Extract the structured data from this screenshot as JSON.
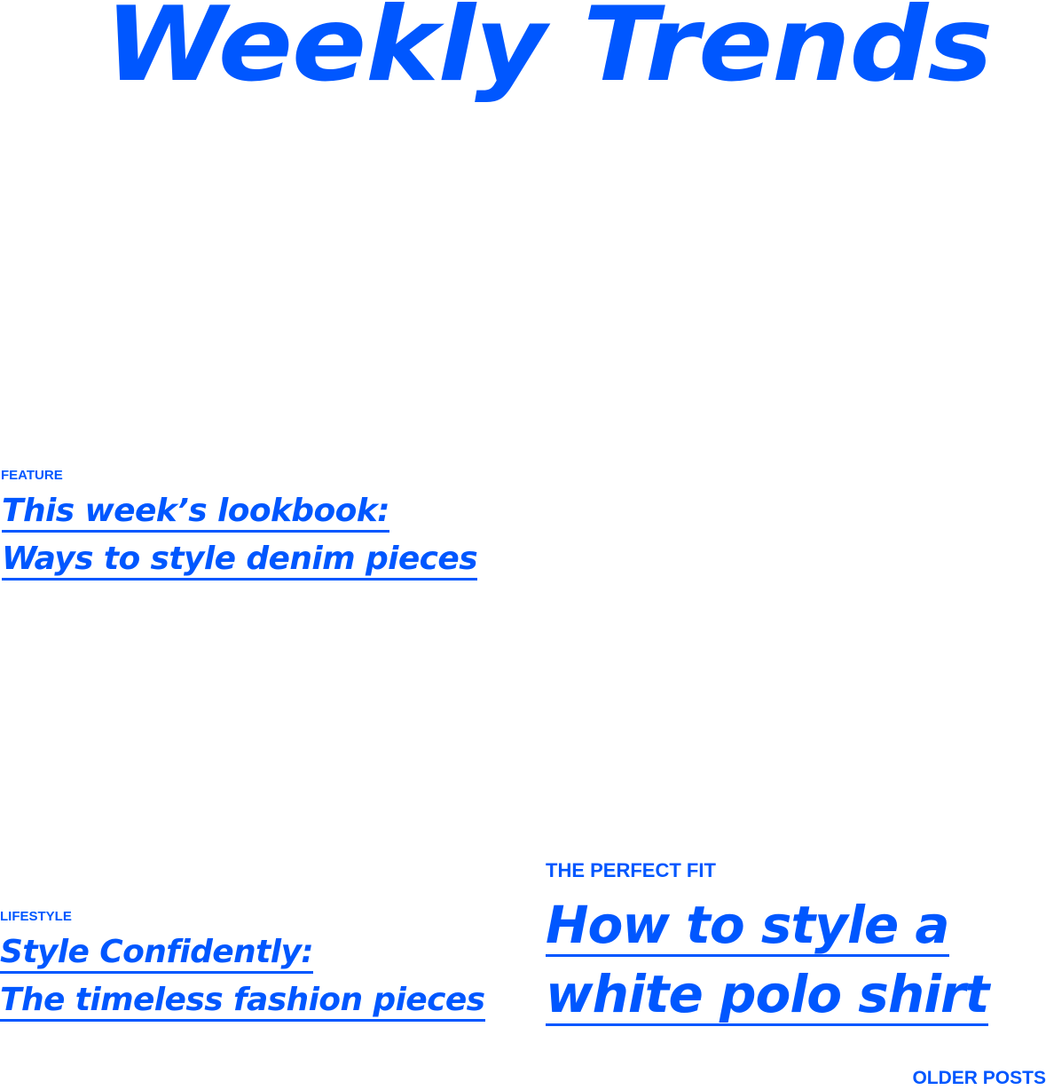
{
  "header": {
    "title": "Weekly Trends"
  },
  "posts": [
    {
      "kicker": "FEATURE",
      "title_lines": [
        "This week’s lookbook:",
        "Ways to style denim pieces"
      ]
    },
    {
      "kicker": "LIFESTYLE",
      "title_lines": [
        "Style Confidently:",
        "The timeless fashion pieces"
      ]
    },
    {
      "kicker": "THE PERFECT FIT",
      "title_lines": [
        "How to style a",
        "white polo shirt"
      ]
    }
  ],
  "pagination": {
    "older_label": "OLDER POSTS"
  },
  "colors": {
    "accent": "#0057ff",
    "background": "#ffffff"
  }
}
